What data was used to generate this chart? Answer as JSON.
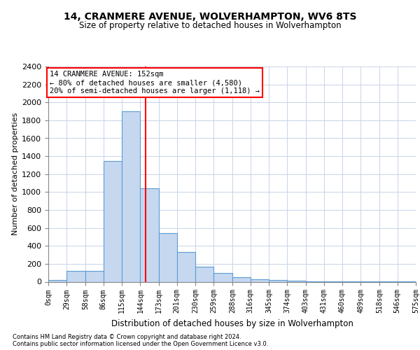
{
  "title1": "14, CRANMERE AVENUE, WOLVERHAMPTON, WV6 8TS",
  "title2": "Size of property relative to detached houses in Wolverhampton",
  "xlabel": "Distribution of detached houses by size in Wolverhampton",
  "ylabel": "Number of detached properties",
  "bin_edges": [
    0,
    29,
    58,
    86,
    115,
    144,
    173,
    201,
    230,
    259,
    288,
    316,
    345,
    374,
    403,
    431,
    460,
    489,
    518,
    546,
    575
  ],
  "bin_labels": [
    "0sqm",
    "29sqm",
    "58sqm",
    "86sqm",
    "115sqm",
    "144sqm",
    "173sqm",
    "201sqm",
    "230sqm",
    "259sqm",
    "288sqm",
    "316sqm",
    "345sqm",
    "374sqm",
    "403sqm",
    "431sqm",
    "460sqm",
    "489sqm",
    "518sqm",
    "546sqm",
    "575sqm"
  ],
  "counts": [
    20,
    120,
    120,
    1350,
    1900,
    1040,
    540,
    330,
    170,
    100,
    50,
    30,
    20,
    10,
    5,
    5,
    3,
    2,
    1,
    2
  ],
  "bar_color": "#c5d8f0",
  "bar_edge_color": "#5b9bd5",
  "red_line_x": 152,
  "annotation_line1": "14 CRANMERE AVENUE: 152sqm",
  "annotation_line2": "← 80% of detached houses are smaller (4,580)",
  "annotation_line3": "20% of semi-detached houses are larger (1,118) →",
  "ylim": [
    0,
    2400
  ],
  "yticks": [
    0,
    200,
    400,
    600,
    800,
    1000,
    1200,
    1400,
    1600,
    1800,
    2000,
    2200,
    2400
  ],
  "footnote1": "Contains HM Land Registry data © Crown copyright and database right 2024.",
  "footnote2": "Contains public sector information licensed under the Open Government Licence v3.0.",
  "background_color": "#ffffff",
  "grid_color": "#c8d4e8"
}
